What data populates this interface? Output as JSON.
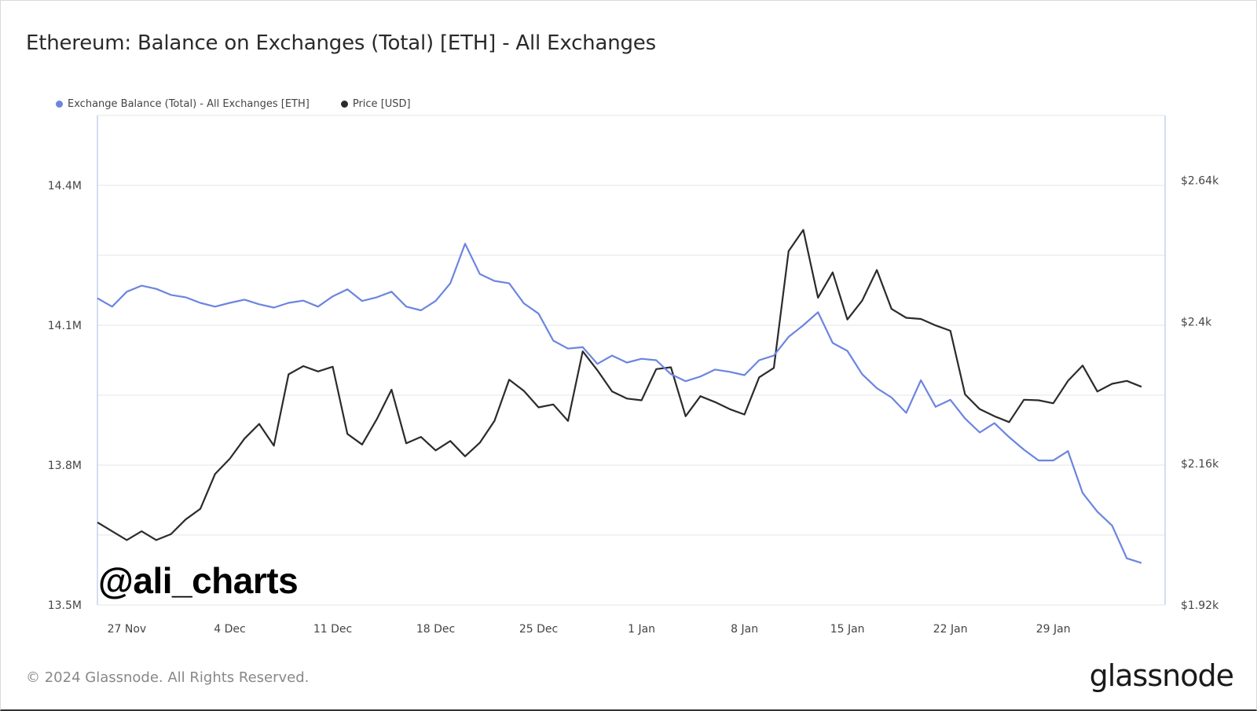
{
  "title": "Ethereum: Balance on Exchanges (Total) [ETH] - All Exchanges",
  "watermark": "@ali_charts",
  "footer": {
    "copyright": "© 2024 Glassnode. All Rights Reserved.",
    "brand": "glassnode"
  },
  "colors": {
    "balance": "#6b85e0",
    "price": "#2b2b2b",
    "grid": "#e6e6e6",
    "axis": "#c8d0ee"
  },
  "chart_data": {
    "type": "line",
    "x": [
      "25 Nov",
      "26 Nov",
      "27 Nov",
      "28 Nov",
      "29 Nov",
      "30 Nov",
      "1 Dec",
      "2 Dec",
      "3 Dec",
      "4 Dec",
      "5 Dec",
      "6 Dec",
      "7 Dec",
      "8 Dec",
      "9 Dec",
      "10 Dec",
      "11 Dec",
      "12 Dec",
      "13 Dec",
      "14 Dec",
      "15 Dec",
      "16 Dec",
      "17 Dec",
      "18 Dec",
      "19 Dec",
      "20 Dec",
      "21 Dec",
      "22 Dec",
      "23 Dec",
      "24 Dec",
      "25 Dec",
      "26 Dec",
      "27 Dec",
      "28 Dec",
      "29 Dec",
      "30 Dec",
      "31 Dec",
      "1 Jan",
      "2 Jan",
      "3 Jan",
      "4 Jan",
      "5 Jan",
      "6 Jan",
      "7 Jan",
      "8 Jan",
      "9 Jan",
      "10 Jan",
      "11 Jan",
      "12 Jan",
      "13 Jan",
      "14 Jan",
      "15 Jan",
      "16 Jan",
      "17 Jan",
      "18 Jan",
      "19 Jan",
      "20 Jan",
      "21 Jan",
      "22 Jan",
      "23 Jan",
      "24 Jan",
      "25 Jan",
      "26 Jan",
      "27 Jan",
      "28 Jan",
      "29 Jan",
      "30 Jan",
      "31 Jan",
      "1 Feb",
      "2 Feb",
      "3 Feb",
      "4 Feb"
    ],
    "x_ticks": [
      "27 Nov",
      "4 Dec",
      "11 Dec",
      "18 Dec",
      "25 Dec",
      "1 Jan",
      "8 Jan",
      "15 Jan",
      "22 Jan",
      "29 Jan"
    ],
    "series": [
      {
        "name": "Exchange Balance (Total) - All Exchanges [ETH]",
        "axis": "left",
        "values": [
          14.158,
          14.14,
          14.172,
          14.185,
          14.178,
          14.165,
          14.16,
          14.148,
          14.14,
          14.148,
          14.155,
          14.145,
          14.138,
          14.148,
          14.153,
          14.14,
          14.162,
          14.177,
          14.152,
          14.16,
          14.172,
          14.14,
          14.132,
          14.152,
          14.19,
          14.275,
          14.21,
          14.195,
          14.19,
          14.147,
          14.125,
          14.067,
          14.05,
          14.053,
          14.017,
          14.035,
          14.02,
          14.028,
          14.025,
          13.995,
          13.98,
          13.99,
          14.005,
          14.0,
          13.993,
          14.025,
          14.035,
          14.075,
          14.1,
          14.128,
          14.062,
          14.045,
          13.995,
          13.965,
          13.945,
          13.912,
          13.982,
          13.925,
          13.94,
          13.9,
          13.87,
          13.89,
          13.86,
          13.833,
          13.81,
          13.81,
          13.83,
          13.74,
          13.7,
          13.67,
          13.6,
          13.59
        ],
        "values_note": "millions of ETH"
      },
      {
        "name": "Price [USD]",
        "axis": "right",
        "values": [
          2060,
          2045,
          2030,
          2045,
          2030,
          2040,
          2065,
          2083,
          2142,
          2168,
          2202,
          2227,
          2190,
          2311,
          2325,
          2316,
          2324,
          2210,
          2192,
          2235,
          2285,
          2194,
          2205,
          2182,
          2198,
          2172,
          2195,
          2232,
          2302,
          2283,
          2255,
          2260,
          2232,
          2350,
          2318,
          2282,
          2270,
          2267,
          2320,
          2323,
          2240,
          2274,
          2264,
          2252,
          2243,
          2306,
          2322,
          2520,
          2556,
          2441,
          2484,
          2404,
          2436,
          2488,
          2422,
          2407,
          2405,
          2394,
          2385,
          2277,
          2252,
          2240,
          2230,
          2268,
          2267,
          2262,
          2300,
          2326,
          2282,
          2295,
          2300,
          2290
        ],
        "values_note": "USD"
      }
    ],
    "y_left": {
      "ticks": [
        "14.4M",
        "14.1M",
        "13.8M",
        "13.5M"
      ],
      "range": [
        13.5,
        14.55
      ]
    },
    "y_right": {
      "ticks": [
        "$2.64k",
        "$2.4k",
        "$2.16k",
        "$1.92k"
      ],
      "range": [
        1920,
        2750
      ]
    },
    "legend_position": "top-left",
    "grid": true
  }
}
